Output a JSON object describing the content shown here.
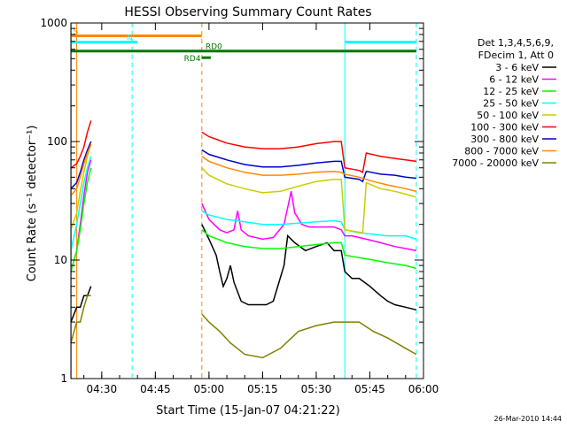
{
  "chart_data": {
    "type": "line",
    "title": "HESSI Observing Summary Count Rates",
    "xlabel": "Start Time (15-Jan-07 04:21:22)",
    "ylabel": "Count Rate (s⁻¹ detector⁻¹)",
    "yscale": "log",
    "ylim": [
      1,
      1000
    ],
    "xlim": [
      "04:21:22",
      "06:00:00"
    ],
    "x_ticks": [
      "04:30",
      "04:45",
      "05:00",
      "05:15",
      "05:30",
      "05:45",
      "06:00"
    ],
    "y_ticks": [
      "1",
      "10",
      "100",
      "1000"
    ],
    "grid": false,
    "legend_position": "right",
    "legend_header": [
      "Det 1,3,4,5,6,9,",
      "FDecim 1, Att 0"
    ],
    "footer_date": "26-Mar-2010 14:44",
    "series": [
      {
        "name": "3 - 6 keV",
        "color": "#000000",
        "x": [
          "04:21:22",
          "04:23:00",
          "04:24:00",
          "04:25:00",
          "04:26:00",
          "04:27:00"
        ],
        "y": [
          3,
          4,
          4,
          5,
          5,
          6
        ]
      },
      {
        "name": "6 - 12 keV",
        "color": "#ff00ff",
        "x": [
          "04:21:22",
          "04:23:00",
          "04:24:00",
          "04:25:00",
          "04:26:00",
          "04:27:00"
        ],
        "y": [
          8,
          12,
          20,
          35,
          55,
          70
        ]
      },
      {
        "name": "12 - 25 keV",
        "color": "#00ff00",
        "x": [
          "04:21:22",
          "04:23:00",
          "04:24:00",
          "04:25:00",
          "04:26:00",
          "04:27:00"
        ],
        "y": [
          8,
          12,
          18,
          30,
          45,
          60
        ]
      },
      {
        "name": "25 - 50 keV",
        "color": "#00ffff",
        "x": [
          "04:21:22",
          "04:23:00",
          "04:24:00",
          "04:25:00",
          "04:26:00",
          "04:27:00"
        ],
        "y": [
          12,
          20,
          30,
          45,
          60,
          75
        ]
      },
      {
        "name": "50 - 100 keV",
        "color": "#cccc00",
        "x": [
          "04:21:22",
          "04:23:00",
          "04:24:00",
          "04:25:00",
          "04:26:00",
          "04:27:00"
        ],
        "y": [
          18,
          25,
          38,
          55,
          75,
          95
        ]
      },
      {
        "name": "100 - 300 keV",
        "color": "#ff0000",
        "x": [
          "04:21:22",
          "04:23:00",
          "04:24:00",
          "04:25:00",
          "04:26:00",
          "04:27:00"
        ],
        "y": [
          60,
          65,
          75,
          90,
          120,
          150
        ]
      },
      {
        "name": "300 - 800 keV",
        "color": "#0000cc",
        "x": [
          "04:21:22",
          "04:23:00",
          "04:24:00",
          "04:25:00",
          "04:26:00",
          "04:27:00"
        ],
        "y": [
          40,
          45,
          55,
          70,
          85,
          100
        ]
      },
      {
        "name": "800 - 7000 keV",
        "color": "#ff8800",
        "x": [
          "04:21:22",
          "04:23:00",
          "04:24:00",
          "04:25:00",
          "04:26:00",
          "04:27:00"
        ],
        "y": [
          35,
          40,
          50,
          65,
          80,
          95
        ]
      },
      {
        "name": "7000 - 20000 keV",
        "color": "#808000",
        "x": [
          "04:21:22",
          "04:23:00",
          "04:24:00",
          "04:25:00",
          "04:26:00",
          "04:27:00"
        ],
        "y": [
          2,
          3,
          3,
          4,
          5,
          5
        ]
      }
    ],
    "overlay_series": [
      {
        "color": "#000000",
        "x": [
          "04:58:00",
          "05:00:00",
          "05:02:00",
          "05:03:00",
          "05:04:00",
          "05:05:00",
          "05:06:00",
          "05:07:00",
          "05:09:00",
          "05:11:00",
          "05:13:00",
          "05:16:00",
          "05:18:00",
          "05:21:00",
          "05:22:00",
          "05:24:00",
          "05:27:00",
          "05:30:00",
          "05:33:00",
          "05:35:00",
          "05:37:00",
          "05:38:00",
          "05:40:00",
          "05:42:00",
          "05:45:00",
          "05:48:00",
          "05:50:00",
          "05:52:00",
          "05:55:00",
          "05:58:00"
        ],
        "y": [
          20,
          15,
          11,
          8,
          6,
          7,
          9,
          6.5,
          4.5,
          4.2,
          4.2,
          4.2,
          4.5,
          9,
          16,
          14,
          12,
          13,
          14,
          12,
          12,
          8,
          7,
          7,
          6,
          5,
          4.5,
          4.2,
          4,
          3.8
        ]
      },
      {
        "color": "#ff00ff",
        "x": [
          "04:58:00",
          "05:00:00",
          "05:03:00",
          "05:05:00",
          "05:07:00",
          "05:08:00",
          "05:09:00",
          "05:11:00",
          "05:15:00",
          "05:18:00",
          "05:21:00",
          "05:23:00",
          "05:24:00",
          "05:26:00",
          "05:28:00",
          "05:31:00",
          "05:35:00",
          "05:37:00",
          "05:38:00",
          "05:40:00",
          "05:44:00",
          "05:48:00",
          "05:52:00",
          "05:55:00",
          "05:58:00"
        ],
        "y": [
          30,
          22,
          18,
          17,
          18,
          26,
          18,
          16,
          15,
          15.5,
          20,
          38,
          25,
          20,
          19,
          19,
          19,
          18,
          16,
          16,
          15,
          14,
          13,
          12.5,
          12
        ]
      },
      {
        "color": "#00ffff",
        "x": [
          "04:58:00",
          "05:00:00",
          "05:05:00",
          "05:10:00",
          "05:15:00",
          "05:20:00",
          "05:25:00",
          "05:30:00",
          "05:35:00",
          "05:37:00",
          "05:38:00",
          "05:42:00",
          "05:46:00",
          "05:50:00",
          "05:55:00",
          "05:58:00"
        ],
        "y": [
          26,
          24,
          22,
          21,
          20,
          20,
          20.5,
          21,
          21.5,
          21,
          18,
          17,
          16.5,
          16,
          16,
          15
        ]
      },
      {
        "color": "#00ff00",
        "x": [
          "04:58:00",
          "05:00:00",
          "05:05:00",
          "05:10:00",
          "05:15:00",
          "05:20:00",
          "05:25:00",
          "05:30:00",
          "05:35:00",
          "05:37:00",
          "05:38:00",
          "05:42:00",
          "05:46:00",
          "05:50:00",
          "05:55:00",
          "05:58:00"
        ],
        "y": [
          18,
          16,
          14,
          13,
          12.5,
          12.5,
          13,
          13.5,
          14,
          14,
          11,
          10.5,
          10,
          9.5,
          9,
          8.5
        ]
      },
      {
        "color": "#cccc00",
        "x": [
          "04:58:00",
          "05:00:00",
          "05:05:00",
          "05:10:00",
          "05:15:00",
          "05:20:00",
          "05:25:00",
          "05:30:00",
          "05:35:00",
          "05:37:00",
          "05:38:00",
          "05:43:00",
          "05:44:00",
          "05:48:00",
          "05:52:00",
          "05:55:00",
          "05:58:00"
        ],
        "y": [
          60,
          52,
          44,
          40,
          37,
          38,
          42,
          46,
          48,
          48,
          18,
          17,
          45,
          40,
          38,
          36,
          34
        ]
      },
      {
        "color": "#ff0000",
        "x": [
          "04:58:00",
          "05:00:00",
          "05:05:00",
          "05:10:00",
          "05:15:00",
          "05:20:00",
          "05:25:00",
          "05:30:00",
          "05:35:00",
          "05:37:00",
          "05:38:00",
          "05:42:00",
          "05:43:00",
          "05:44:00",
          "05:48:00",
          "05:52:00",
          "05:55:00",
          "05:58:00"
        ],
        "y": [
          120,
          110,
          97,
          90,
          87,
          87,
          90,
          96,
          100,
          100,
          60,
          57,
          55,
          80,
          75,
          72,
          70,
          68
        ]
      },
      {
        "color": "#0000cc",
        "x": [
          "04:58:00",
          "05:00:00",
          "05:05:00",
          "05:10:00",
          "05:15:00",
          "05:20:00",
          "05:25:00",
          "05:30:00",
          "05:35:00",
          "05:37:00",
          "05:38:00",
          "05:42:00",
          "05:43:00",
          "05:44:00",
          "05:48:00",
          "05:52:00",
          "05:55:00",
          "05:58:00"
        ],
        "y": [
          85,
          78,
          70,
          64,
          61,
          61,
          63,
          66,
          68,
          68,
          50,
          48,
          46,
          56,
          53,
          52,
          50,
          49
        ]
      },
      {
        "color": "#ff8800",
        "x": [
          "04:58:00",
          "05:00:00",
          "05:05:00",
          "05:10:00",
          "05:15:00",
          "05:20:00",
          "05:25:00",
          "05:30:00",
          "05:35:00",
          "05:37:00",
          "05:38:00",
          "05:42:00",
          "05:46:00",
          "05:50:00",
          "05:55:00",
          "05:58:00"
        ],
        "y": [
          75,
          68,
          60,
          55,
          52,
          52,
          53,
          55,
          56,
          55,
          53,
          50,
          46,
          43,
          40,
          38
        ]
      },
      {
        "color": "#808000",
        "x": [
          "04:58:00",
          "05:00:00",
          "05:03:00",
          "05:06:00",
          "05:10:00",
          "05:15:00",
          "05:20:00",
          "05:25:00",
          "05:30:00",
          "05:35:00",
          "05:38:00",
          "05:42:00",
          "05:46:00",
          "05:50:00",
          "05:55:00",
          "05:58:00"
        ],
        "y": [
          3.5,
          3,
          2.5,
          2,
          1.6,
          1.5,
          1.8,
          2.5,
          2.8,
          3,
          3,
          3,
          2.5,
          2.2,
          1.8,
          1.6
        ]
      }
    ],
    "flag_bars": [
      {
        "label": "S",
        "color": "#ff8800",
        "start": "04:21:22",
        "end": "04:58:00",
        "level": 780,
        "label_at": "04:22:00"
      },
      {
        "label": "N",
        "color": "#00ffff",
        "start": "04:21:22",
        "end": "04:40:00",
        "level": 690,
        "label_at": "04:37:00"
      },
      {
        "label": "",
        "color": "#00ffff",
        "start": "05:38:00",
        "end": "05:58:00",
        "level": 690,
        "label_at": ""
      },
      {
        "label": "RD0",
        "color": "#007700",
        "start": "04:21:22",
        "end": "05:58:00",
        "level": 580,
        "label_at": "04:59:00"
      },
      {
        "label": "RD4",
        "color": "#007700",
        "start": "04:58:00",
        "end": "05:00:30",
        "level": 510,
        "label_at": "04:53:00"
      }
    ],
    "vertical_lines": [
      {
        "time": "04:21:30",
        "color": "#00ffff",
        "style": "solid"
      },
      {
        "time": "04:23:00",
        "color": "#ff8800",
        "style": "solid"
      },
      {
        "time": "04:38:30",
        "color": "#00ffff",
        "style": "dashed"
      },
      {
        "time": "04:58:00",
        "color": "#ff8800",
        "style": "dashed"
      },
      {
        "time": "05:38:00",
        "color": "#00ffff",
        "style": "solid"
      },
      {
        "time": "05:58:00",
        "color": "#00ffff",
        "style": "dashed"
      }
    ]
  }
}
